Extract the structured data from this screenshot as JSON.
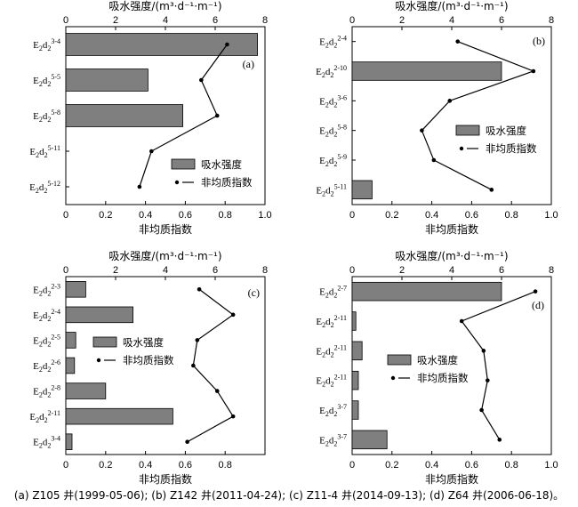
{
  "caption": "(a) Z105 井(1999-05-06); (b) Z142 井(2011-04-24); (c) Z11-4 井(2014-09-13); (d) Z64 井(2006-06-18)。",
  "chart_data": [
    {
      "type": "bar",
      "panel_label": "(a)",
      "top_axis_label": "吸水强度/(m³·d⁻¹·m⁻¹)",
      "bottom_axis_label": "非均质指数",
      "top_ticks": [
        "0",
        "2",
        "4",
        "6",
        "8"
      ],
      "bottom_ticks": [
        "0",
        "0.2",
        "0.4",
        "0.6",
        "0.8",
        "1.0"
      ],
      "top_lim": [
        0,
        8
      ],
      "bottom_lim": [
        0,
        1.0
      ],
      "categories": [
        {
          "base": "E",
          "s1": "2",
          "mid": "d",
          "s2": "2",
          "sup": "3-4"
        },
        {
          "base": "E",
          "s1": "2",
          "mid": "d",
          "s2": "2",
          "sup": "5-5"
        },
        {
          "base": "E",
          "s1": "2",
          "mid": "d",
          "s2": "2",
          "sup": "5-8"
        },
        {
          "base": "E",
          "s1": "2",
          "mid": "d",
          "s2": "2",
          "sup": "5-11"
        },
        {
          "base": "E",
          "s1": "2",
          "mid": "d",
          "s2": "2",
          "sup": "5-12"
        }
      ],
      "series": [
        {
          "name": "吸水强度",
          "kind": "bar",
          "axis": "top",
          "values": [
            7.7,
            3.3,
            4.7,
            null,
            null
          ]
        },
        {
          "name": "非均质指数",
          "kind": "line",
          "axis": "bottom",
          "values": [
            0.81,
            0.68,
            0.76,
            0.43,
            0.37
          ]
        }
      ],
      "legend": {
        "placement": "lower-right"
      }
    },
    {
      "type": "bar",
      "panel_label": "(b)",
      "top_axis_label": "吸水强度/(m³·d⁻¹·m⁻¹)",
      "bottom_axis_label": "非均质指数",
      "top_ticks": [
        "0",
        "2",
        "4",
        "6",
        "8"
      ],
      "bottom_ticks": [
        "0",
        "0.2",
        "0.4",
        "0.6",
        "0.8",
        "1.0"
      ],
      "top_lim": [
        0,
        8
      ],
      "bottom_lim": [
        0,
        1.0
      ],
      "categories": [
        {
          "base": "E",
          "s1": "2",
          "mid": "d",
          "s2": "2",
          "sup": "2-4"
        },
        {
          "base": "E",
          "s1": "2",
          "mid": "d",
          "s2": "2",
          "sup": "2-10"
        },
        {
          "base": "E",
          "s1": "2",
          "mid": "d",
          "s2": "2",
          "sup": "3-6"
        },
        {
          "base": "E",
          "s1": "2",
          "mid": "d",
          "s2": "2",
          "sup": "5-8"
        },
        {
          "base": "E",
          "s1": "2",
          "mid": "d",
          "s2": "2",
          "sup": "5-9"
        },
        {
          "base": "E",
          "s1": "2",
          "mid": "d",
          "s2": "2",
          "sup": "5-11"
        }
      ],
      "series": [
        {
          "name": "吸水强度",
          "kind": "bar",
          "axis": "top",
          "values": [
            null,
            6.0,
            null,
            null,
            null,
            0.8
          ]
        },
        {
          "name": "非均质指数",
          "kind": "line",
          "axis": "bottom",
          "values": [
            0.53,
            0.91,
            0.49,
            0.35,
            0.41,
            0.7
          ]
        }
      ],
      "legend": {
        "placement": "middle-right"
      }
    },
    {
      "type": "bar",
      "panel_label": "(c)",
      "top_axis_label": "吸水强度/(m³·d⁻¹·m⁻¹)",
      "bottom_axis_label": "非均质指数",
      "top_ticks": [
        "0",
        "2",
        "4",
        "6",
        "8"
      ],
      "bottom_ticks": [
        "0",
        "0.2",
        "0.4",
        "0.6",
        "0.8"
      ],
      "top_lim": [
        0,
        8
      ],
      "bottom_lim": [
        0,
        1.0
      ],
      "categories": [
        {
          "base": "E",
          "s1": "2",
          "mid": "d",
          "s2": "2",
          "sup": "2-3"
        },
        {
          "base": "E",
          "s1": "2",
          "mid": "d",
          "s2": "2",
          "sup": "2-4"
        },
        {
          "base": "E",
          "s1": "2",
          "mid": "d",
          "s2": "2",
          "sup": "2-5"
        },
        {
          "base": "E",
          "s1": "2",
          "mid": "d",
          "s2": "2",
          "sup": "2-6"
        },
        {
          "base": "E",
          "s1": "2",
          "mid": "d",
          "s2": "2",
          "sup": "2-8"
        },
        {
          "base": "E",
          "s1": "2",
          "mid": "d",
          "s2": "2",
          "sup": "2-11"
        },
        {
          "base": "E",
          "s1": "2",
          "mid": "d",
          "s2": "2",
          "sup": "3-4"
        }
      ],
      "series": [
        {
          "name": "吸水强度",
          "kind": "bar",
          "axis": "top",
          "values": [
            0.8,
            2.7,
            0.4,
            0.35,
            1.6,
            4.3,
            0.25
          ]
        },
        {
          "name": "非均质指数",
          "kind": "line",
          "axis": "bottom",
          "values": [
            0.67,
            0.84,
            0.66,
            0.64,
            0.76,
            0.84,
            0.61
          ]
        }
      ],
      "legend": {
        "placement": "middle-center"
      }
    },
    {
      "type": "bar",
      "panel_label": "(d)",
      "top_axis_label": "吸水强度/(m³·d⁻¹·m⁻¹)",
      "bottom_axis_label": "非均质指数",
      "top_ticks": [
        "0",
        "2",
        "4",
        "6",
        "8"
      ],
      "bottom_ticks": [
        "0",
        "0.2",
        "0.4",
        "0.6",
        "0.8",
        "1.0"
      ],
      "top_lim": [
        0,
        8
      ],
      "bottom_lim": [
        0,
        1.0
      ],
      "categories": [
        {
          "base": "E",
          "s1": "2",
          "mid": "d",
          "s2": "2",
          "sup": "2-7"
        },
        {
          "base": "E",
          "s1": "2",
          "mid": "d",
          "s2": "2",
          "sup": "2-11"
        },
        {
          "base": "E",
          "s1": "2",
          "mid": "d",
          "s2": "2",
          "sup": "2-11"
        },
        {
          "base": "E",
          "s1": "2",
          "mid": "d",
          "s2": "2",
          "sup": "2-11"
        },
        {
          "base": "E",
          "s1": "2",
          "mid": "d",
          "s2": "2",
          "sup": "3-7"
        },
        {
          "base": "E",
          "s1": "2",
          "mid": "d",
          "s2": "2",
          "sup": "3-7"
        }
      ],
      "series": [
        {
          "name": "吸水强度",
          "kind": "bar",
          "axis": "top",
          "values": [
            6.0,
            0.15,
            0.4,
            0.25,
            0.25,
            1.4
          ]
        },
        {
          "name": "非均质指数",
          "kind": "line",
          "axis": "bottom",
          "values": [
            0.92,
            0.55,
            0.66,
            0.68,
            0.65,
            0.74
          ]
        }
      ],
      "legend": {
        "placement": "middle-center"
      }
    }
  ]
}
